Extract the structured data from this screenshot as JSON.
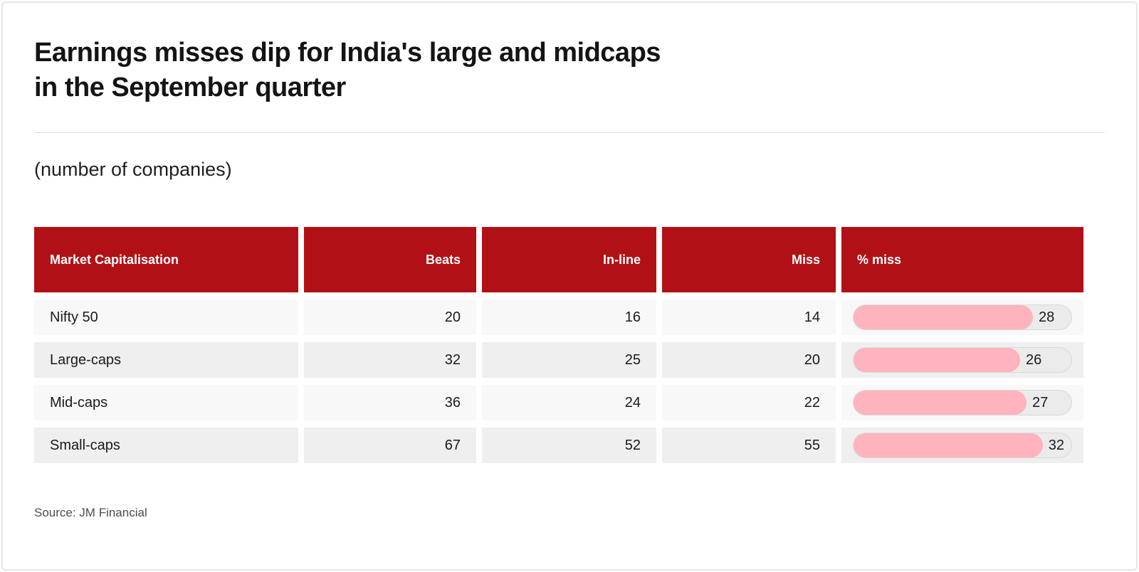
{
  "page": {
    "title_lines": [
      "Earnings misses dip for India's large and midcaps",
      "in the September quarter"
    ],
    "subtitle": "(number of companies)",
    "source": "Source: JM Financial"
  },
  "chart_data": {
    "type": "table",
    "title": "Earnings misses dip for India's large and midcaps in the September quarter",
    "subtitle": "(number of companies)",
    "source": "JM Financial",
    "columns": [
      "Market Capitalisation",
      "Beats",
      "In-line",
      "Miss",
      "% miss"
    ],
    "rows": [
      {
        "market_capitalisation": "Nifty 50",
        "beats": 20,
        "in_line": 16,
        "miss": 14,
        "pct_miss": 28
      },
      {
        "market_capitalisation": "Large-caps",
        "beats": 32,
        "in_line": 25,
        "miss": 20,
        "pct_miss": 26
      },
      {
        "market_capitalisation": "Mid-caps",
        "beats": 36,
        "in_line": 24,
        "miss": 22,
        "pct_miss": 27
      },
      {
        "market_capitalisation": "Small-caps",
        "beats": 67,
        "in_line": 52,
        "miss": 55,
        "pct_miss": 32
      }
    ],
    "bar": {
      "scale_max": 34,
      "fill_color": "#ffb3bd",
      "track_color": "#ebebeb"
    },
    "layout_hints": {
      "row_colors_alternate": [
        "#f8f8f8",
        "#efefef"
      ],
      "header_color": "#b11116",
      "numeric_columns_right_aligned": true
    }
  },
  "colors": {
    "header_red": "#b11116",
    "row_light": "#f8f8f8",
    "row_dark": "#efefef",
    "bar_fill": "#ffb3bd",
    "bar_track": "#ebebeb",
    "bar_track_border": "#d9d9d9",
    "divider": "#dcdcdc"
  }
}
